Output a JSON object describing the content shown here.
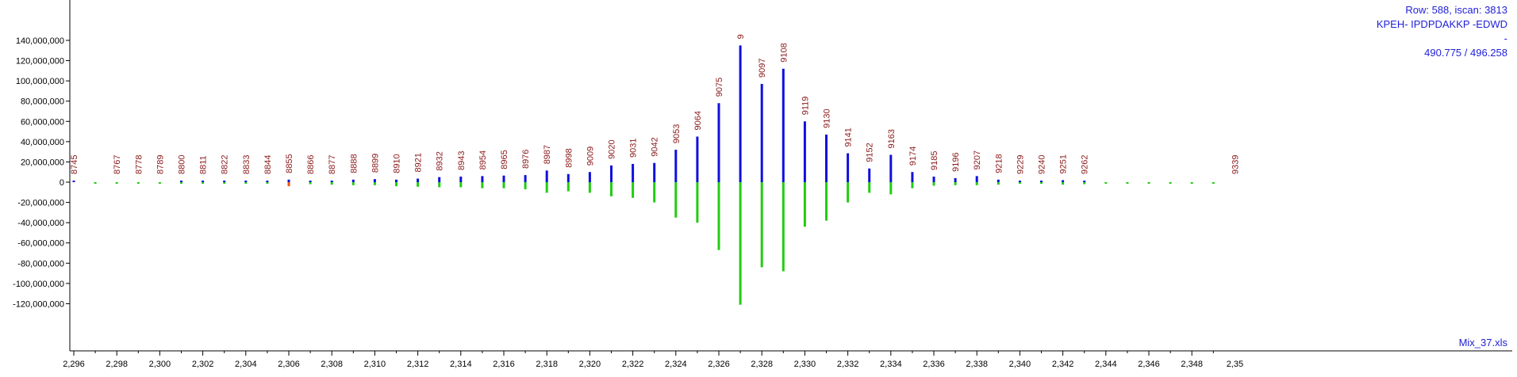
{
  "header": {
    "row_info": "Row: 588, iscan: 3813",
    "peptide": "KPEH- IPDPDAKKP -EDWD",
    "dash": "-",
    "mz_pair": "490.775 / 496.258",
    "file_name": "Mix_37.xls"
  },
  "colors": {
    "positive": "#1010dd",
    "negative": "#22cc11",
    "highlight": "#ee5500",
    "peak_label": "#8b1a1a",
    "axis_text": "#000000",
    "info_text": "#1f1fd8"
  },
  "chart_data": {
    "type": "bar",
    "ylim": [
      -130000000,
      140000000
    ],
    "xlim": [
      2295.2,
      2349.5
    ],
    "yticks": [
      "140,000,000",
      "120,000,000",
      "100,000,000",
      "80,000,000",
      "60,000,000",
      "40,000,000",
      "20,000,000",
      "0",
      "-20,000,000",
      "-40,000,000",
      "-60,000,000",
      "-80,000,000",
      "-100,000,000",
      "-120,000,000"
    ],
    "ytick_values": [
      140000000,
      120000000,
      100000000,
      80000000,
      60000000,
      40000000,
      20000000,
      0,
      -20000000,
      -40000000,
      -60000000,
      -80000000,
      -100000000,
      -120000000
    ],
    "xticks": [
      "2,296",
      "2,298",
      "2,300",
      "2,302",
      "2,304",
      "2,306",
      "2,308",
      "2,310",
      "2,312",
      "2,314",
      "2,316",
      "2,318",
      "2,320",
      "2,322",
      "2,324",
      "2,326",
      "2,328",
      "2,330",
      "2,332",
      "2,334",
      "2,336",
      "2,338",
      "2,340",
      "2,342",
      "2,344",
      "2,346",
      "2,348",
      "2,35"
    ],
    "xtick_values": [
      2296,
      2298,
      2300,
      2302,
      2304,
      2306,
      2308,
      2310,
      2312,
      2314,
      2316,
      2318,
      2320,
      2322,
      2324,
      2326,
      2328,
      2330,
      2332,
      2334,
      2336,
      2338,
      2340,
      2342,
      2344,
      2346,
      2348,
      2350
    ],
    "series": [
      {
        "name": "positive",
        "x": [
          2296,
          2301,
          2302,
          2303,
          2304,
          2305,
          2306,
          2307,
          2308,
          2309,
          2310,
          2311,
          2312,
          2313,
          2314,
          2315,
          2316,
          2317,
          2318,
          2319,
          2320,
          2321,
          2322,
          2323,
          2324,
          2325,
          2326,
          2327,
          2328,
          2329,
          2330,
          2331,
          2332,
          2333,
          2334,
          2335,
          2336,
          2337,
          2338,
          2339,
          2340,
          2341,
          2342,
          2343
        ],
        "values": [
          300000,
          800000,
          500000,
          1500000,
          1000000,
          1500000,
          2500000,
          1500000,
          1500000,
          2500000,
          3000000,
          2500000,
          3500000,
          5000000,
          5500000,
          6000000,
          6500000,
          7000000,
          11500000,
          8000000,
          10000000,
          16500000,
          18000000,
          19000000,
          32000000,
          45000000,
          78000000,
          135000000,
          97000000,
          112000000,
          60000000,
          47000000,
          28500000,
          13500000,
          27000000,
          10000000,
          5500000,
          4000000,
          6000000,
          2500000,
          1500000,
          1500000,
          2000000,
          700000
        ]
      },
      {
        "name": "negative",
        "x": [
          2297,
          2298,
          2299,
          2300,
          2301,
          2302,
          2303,
          2304,
          2305,
          2306,
          2307,
          2308,
          2309,
          2310,
          2311,
          2312,
          2313,
          2314,
          2315,
          2316,
          2317,
          2318,
          2319,
          2320,
          2321,
          2322,
          2323,
          2324,
          2325,
          2326,
          2327,
          2328,
          2329,
          2330,
          2331,
          2332,
          2333,
          2334,
          2335,
          2336,
          2337,
          2338,
          2339,
          2340,
          2341,
          2342,
          2343,
          2344,
          2345,
          2346,
          2347,
          2348,
          2349
        ],
        "values": [
          -500000,
          -500000,
          -1000000,
          -1000000,
          -1000000,
          -1000000,
          -1500000,
          -1500000,
          -1000000,
          -2500000,
          -2000000,
          -2500000,
          -3000000,
          -3000000,
          -4000000,
          -4500000,
          -5000000,
          -5000000,
          -6000000,
          -6000000,
          -7000000,
          -10500000,
          -9000000,
          -10500000,
          -14000000,
          -15500000,
          -20000000,
          -35000000,
          -40000000,
          -67000000,
          -121000000,
          -84000000,
          -88000000,
          -44000000,
          -38000000,
          -20000000,
          -10500000,
          -12000000,
          -6000000,
          -3500000,
          -3000000,
          -3000000,
          -2500000,
          -1500000,
          -1500000,
          -2500000,
          -2000000,
          -1000000,
          -1000000,
          -1000000,
          -700000,
          -700000,
          -700000
        ]
      },
      {
        "name": "highlight",
        "x": [
          2306
        ],
        "values": [
          -4000000
        ]
      }
    ],
    "peak_labels": [
      {
        "text": "8745",
        "x": 2296
      },
      {
        "text": "8767",
        "x": 2298
      },
      {
        "text": "8778",
        "x": 2299
      },
      {
        "text": "8789",
        "x": 2300
      },
      {
        "text": "8800",
        "x": 2301
      },
      {
        "text": "8811",
        "x": 2302
      },
      {
        "text": "8822",
        "x": 2303
      },
      {
        "text": "8833",
        "x": 2304
      },
      {
        "text": "8844",
        "x": 2305
      },
      {
        "text": "8855",
        "x": 2306
      },
      {
        "text": "8866",
        "x": 2307
      },
      {
        "text": "8877",
        "x": 2308
      },
      {
        "text": "8888",
        "x": 2309
      },
      {
        "text": "8899",
        "x": 2310
      },
      {
        "text": "8910",
        "x": 2311
      },
      {
        "text": "8921",
        "x": 2312
      },
      {
        "text": "8932",
        "x": 2313
      },
      {
        "text": "8943",
        "x": 2314
      },
      {
        "text": "8954",
        "x": 2315
      },
      {
        "text": "8965",
        "x": 2316
      },
      {
        "text": "8976",
        "x": 2317
      },
      {
        "text": "8987",
        "x": 2318
      },
      {
        "text": "8998",
        "x": 2319
      },
      {
        "text": "9009",
        "x": 2320
      },
      {
        "text": "9020",
        "x": 2321
      },
      {
        "text": "9031",
        "x": 2322
      },
      {
        "text": "9042",
        "x": 2323
      },
      {
        "text": "9053",
        "x": 2324
      },
      {
        "text": "9064",
        "x": 2325
      },
      {
        "text": "9075",
        "x": 2326
      },
      {
        "text": "9",
        "x": 2327
      },
      {
        "text": "9097",
        "x": 2328
      },
      {
        "text": "9108",
        "x": 2329
      },
      {
        "text": "9119",
        "x": 2330
      },
      {
        "text": "9130",
        "x": 2331
      },
      {
        "text": "9141",
        "x": 2332
      },
      {
        "text": "9152",
        "x": 2333
      },
      {
        "text": "9163",
        "x": 2334
      },
      {
        "text": "9174",
        "x": 2335
      },
      {
        "text": "9185",
        "x": 2336
      },
      {
        "text": "9196",
        "x": 2337
      },
      {
        "text": "9207",
        "x": 2338
      },
      {
        "text": "9218",
        "x": 2339
      },
      {
        "text": "9229",
        "x": 2340
      },
      {
        "text": "9240",
        "x": 2341
      },
      {
        "text": "9251",
        "x": 2342
      },
      {
        "text": "9262",
        "x": 2343
      },
      {
        "text": "9339",
        "x": 2350
      }
    ]
  }
}
